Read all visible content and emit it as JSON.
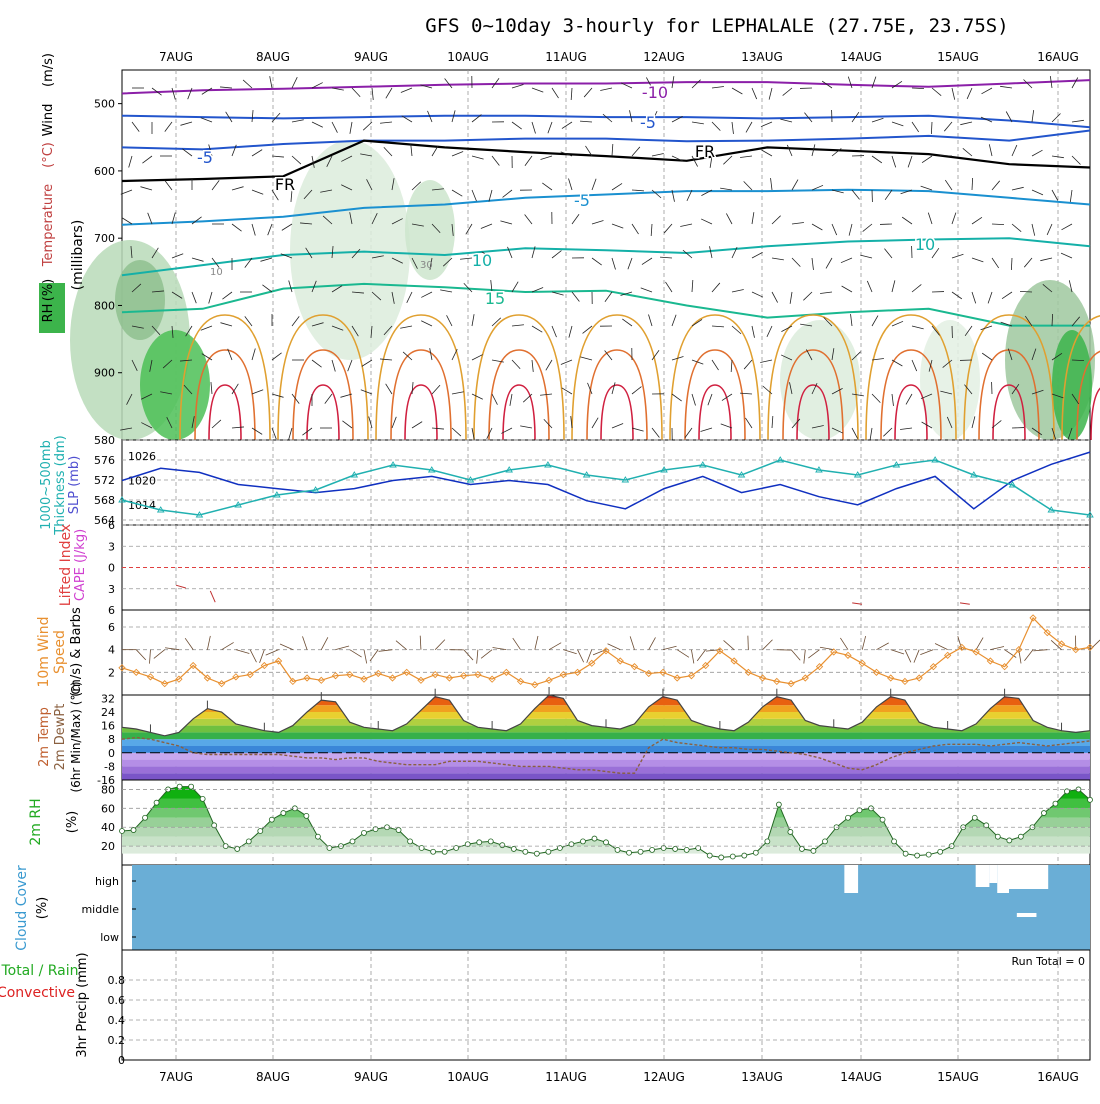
{
  "title": "GFS 0~10day 3-hourly for LEPHALALE (27.75E, 23.75S)",
  "dates": [
    "7AUG",
    "8AUG",
    "9AUG",
    "10AUG",
    "11AUG",
    "12AUG",
    "13AUG",
    "14AUG",
    "15AUG",
    "16AUG"
  ],
  "colors": {
    "wind_barb": "#333333",
    "rh_green": "#3cb44b",
    "freezing": "#000000",
    "cloud": "#6aaed6",
    "precip_total": "#22aa22",
    "precip_conv": "#dd2222"
  },
  "chart_data": [
    {
      "panel": "upper-air",
      "type": "heatmap",
      "ylabel_parts": [
        "Wind",
        "(m/s)",
        "Temperature",
        "(°C)",
        "RH",
        "(%)"
      ],
      "ylabel_units": "(millibars)",
      "y_ticks": [
        500,
        600,
        700,
        800,
        900
      ],
      "ylim": [
        1000,
        450
      ],
      "isotherms": [
        {
          "level_c": -10,
          "label": "-10",
          "pressure": [
            485,
            480,
            478,
            475,
            472,
            470,
            470,
            468,
            468,
            472,
            475,
            470,
            465
          ]
        },
        {
          "level_c": -5,
          "label": "-5",
          "pressure": [
            518,
            520,
            522,
            520,
            518,
            518,
            520,
            520,
            522,
            520,
            518,
            525,
            535
          ]
        },
        {
          "level_c": -5,
          "label": "-5",
          "pressure": [
            565,
            568,
            560,
            555,
            555,
            552,
            552,
            556,
            555,
            552,
            548,
            555,
            540
          ]
        },
        {
          "level_c": 0,
          "label": "FR",
          "pressure": [
            615,
            612,
            608,
            555,
            565,
            572,
            578,
            585,
            565,
            570,
            575,
            590,
            595
          ]
        },
        {
          "level_c": -5,
          "label": "-5",
          "pressure": [
            680,
            675,
            668,
            655,
            650,
            640,
            635,
            630,
            630,
            628,
            630,
            640,
            650
          ]
        },
        {
          "level_c": 10,
          "label": "10",
          "pressure": [
            755,
            740,
            725,
            720,
            725,
            715,
            718,
            722,
            712,
            705,
            702,
            700,
            712
          ]
        },
        {
          "level_c": 15,
          "label": "15",
          "pressure": [
            810,
            805,
            775,
            768,
            773,
            780,
            778,
            800,
            818,
            810,
            805,
            830,
            830
          ]
        }
      ],
      "contour_labels": [
        "10",
        "30"
      ],
      "isotherm_labels": [
        "-10",
        "-5",
        "-5",
        "FR",
        "FR",
        "-5",
        "10",
        "10",
        "15"
      ]
    },
    {
      "panel": "thickness-slp",
      "type": "line",
      "ylabel": "1000~500mb Thickness (dm)",
      "ylabel2": "SLP (mb)",
      "y_ticks_left": [
        564,
        568,
        572,
        576,
        580
      ],
      "y_ticks_right": [
        1014,
        1020,
        1026
      ],
      "ylim_left": [
        563,
        580
      ],
      "ylim_right": [
        1009,
        1030
      ],
      "series": [
        {
          "name": "SLP (mb)",
          "values": [
            1020,
            1023,
            1022,
            1019,
            1018,
            1017,
            1018,
            1020,
            1021,
            1019,
            1020,
            1019,
            1015,
            1013,
            1018,
            1021,
            1017,
            1019,
            1016,
            1014,
            1018,
            1021,
            1013,
            1020,
            1024,
            1027
          ]
        },
        {
          "name": "1000~500mb Thickness (dm)",
          "values": [
            568,
            566,
            565,
            567,
            569,
            570,
            573,
            575,
            574,
            572,
            574,
            575,
            573,
            572,
            574,
            575,
            573,
            576,
            574,
            573,
            575,
            576,
            573,
            571,
            566,
            565
          ]
        }
      ]
    },
    {
      "panel": "cape-li",
      "type": "line",
      "ylabel": "Lifted Index",
      "ylabel2": "CAPE (J/kg)",
      "y_ticks": [
        -6,
        -3,
        0,
        3,
        6
      ],
      "y_tick_labels": [
        "6",
        "3",
        "0",
        "3",
        "6"
      ],
      "ylim": [
        -6,
        6
      ],
      "series": [
        {
          "name": "Lifted Index",
          "x": [
            0,
            0.1,
            0.35,
            0.4,
            6.9,
            7.0,
            8.0,
            8.1,
            9.45,
            9.55
          ],
          "values": [
            2.5,
            2.9,
            3.3,
            4.9,
            5.0,
            5.2,
            5.0,
            5.2,
            4.5,
            4.0
          ]
        }
      ]
    },
    {
      "panel": "wind10m",
      "type": "line",
      "ylabel": "10m Wind Speed (m/s) & Barbs",
      "y_ticks": [
        2,
        4,
        6
      ],
      "ylim": [
        0,
        7.5
      ],
      "series": [
        {
          "name": "10m Wind Speed",
          "values": [
            2.4,
            2.0,
            1.6,
            1.0,
            1.4,
            2.6,
            1.5,
            1.0,
            1.6,
            1.8,
            2.6,
            3.0,
            1.2,
            1.5,
            1.3,
            1.7,
            1.8,
            1.4,
            1.9,
            1.5,
            2.0,
            1.3,
            1.8,
            1.5,
            1.7,
            1.8,
            1.4,
            2.0,
            1.2,
            0.9,
            1.3,
            1.8,
            2.0,
            2.8,
            3.9,
            3.0,
            2.5,
            1.9,
            2.0,
            1.5,
            1.7,
            2.6,
            3.9,
            3.0,
            2.0,
            1.5,
            1.2,
            1.0,
            1.5,
            2.5,
            3.8,
            3.5,
            2.8,
            2.0,
            1.5,
            1.2,
            1.5,
            2.5,
            3.5,
            4.2,
            3.8,
            3.0,
            2.5,
            4.0,
            6.8,
            5.5,
            4.5,
            4.0,
            4.2
          ]
        }
      ]
    },
    {
      "panel": "temp2m",
      "type": "area",
      "ylabel": "2m Temp 2m DewPt (6hr Min/Max) (°C)",
      "y_ticks": [
        -16,
        -8,
        0,
        8,
        16,
        24,
        32
      ],
      "ylim": [
        -16,
        34
      ],
      "series": [
        {
          "name": "2m Temp",
          "values": [
            15,
            14,
            12,
            10,
            12,
            20,
            26,
            24,
            17,
            15,
            13,
            12,
            16,
            24,
            31,
            30,
            18,
            15,
            14,
            13,
            17,
            25,
            33,
            31,
            19,
            15,
            14,
            13,
            17,
            26,
            34,
            32,
            19,
            16,
            15,
            14,
            17,
            27,
            33,
            31,
            19,
            16,
            14,
            13,
            18,
            27,
            33,
            31,
            19,
            16,
            15,
            14,
            18,
            27,
            33,
            31,
            18,
            15,
            14,
            13,
            17,
            26,
            33,
            32,
            19,
            15,
            13,
            12,
            13
          ]
        },
        {
          "name": "2m DewPt",
          "values": [
            8,
            9,
            8,
            6,
            4,
            0,
            -1,
            -1,
            -1,
            -1,
            -1,
            -1,
            -2,
            -3,
            -3,
            -4,
            -3,
            -3,
            -5,
            -6,
            -7,
            -7,
            -7,
            -5,
            -5,
            -5,
            -6,
            -7,
            -8,
            -8,
            -8,
            -9,
            -10,
            -10,
            -11,
            -12,
            -12,
            3,
            8,
            6,
            5,
            4,
            3,
            3,
            2,
            2,
            1,
            0,
            -1,
            -3,
            -6,
            -9,
            -10,
            -7,
            -3,
            0,
            2,
            4,
            5,
            5,
            5,
            4,
            5,
            6,
            5,
            4,
            5,
            6,
            7
          ]
        }
      ]
    },
    {
      "panel": "rh2m",
      "type": "area",
      "ylabel": "2m RH (%)",
      "y_ticks": [
        20,
        40,
        60,
        80
      ],
      "ylim": [
        0,
        90
      ],
      "series": [
        {
          "name": "2m RH",
          "values": [
            36,
            37,
            50,
            66,
            80,
            83,
            83,
            70,
            42,
            20,
            17,
            25,
            36,
            48,
            55,
            60,
            52,
            30,
            18,
            20,
            25,
            34,
            38,
            40,
            37,
            25,
            18,
            14,
            14,
            18,
            22,
            24,
            25,
            21,
            17,
            14,
            12,
            14,
            18,
            22,
            25,
            28,
            24,
            16,
            13,
            14,
            16,
            18,
            17,
            16,
            18,
            10,
            8,
            9,
            10,
            13,
            25,
            64,
            35,
            17,
            15,
            25,
            40,
            50,
            58,
            60,
            48,
            25,
            12,
            10,
            11,
            14,
            20,
            40,
            50,
            42,
            30,
            26,
            30,
            40,
            55,
            65,
            78,
            80,
            69
          ]
        }
      ]
    },
    {
      "panel": "cloud",
      "type": "heatmap",
      "ylabel": "Cloud Cover (%)",
      "levels": [
        "high",
        "middle",
        "low"
      ],
      "clear_patches": [
        {
          "level": "high",
          "x_start": 6.82,
          "x_end": 6.96
        },
        {
          "level": "high",
          "x_start": 8.16,
          "x_end": 8.3
        },
        {
          "level": "high",
          "x_start": 8.3,
          "x_end": 8.38
        },
        {
          "level": "high",
          "x_start": 8.38,
          "x_end": 8.5
        },
        {
          "level": "high",
          "x_start": 8.5,
          "x_end": 8.9
        },
        {
          "level": "middle",
          "x_start": 8.58,
          "x_end": 8.78
        }
      ]
    },
    {
      "panel": "precip",
      "type": "bar",
      "ylabel": "3hr Precip (mm)",
      "ylabel2_total": "Total / Rain",
      "ylabel2_conv": "Convective",
      "y_ticks": [
        0,
        0.2,
        0.4,
        0.6,
        0.8
      ],
      "ylim": [
        0,
        1
      ],
      "run_total_label": "Run Total = 0",
      "series": [
        {
          "name": "Total / Rain",
          "values": []
        },
        {
          "name": "Convective",
          "values": []
        }
      ]
    }
  ]
}
